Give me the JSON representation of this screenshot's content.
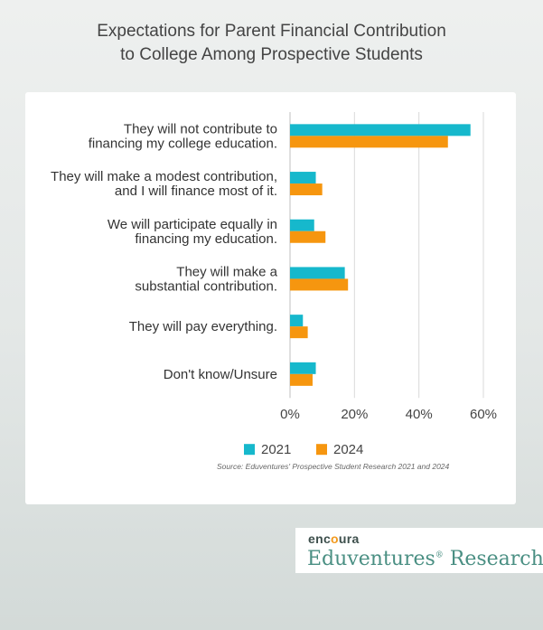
{
  "title_line1": "Expectations for Parent Financial Contribution",
  "title_line2": "to College Among Prospective Students",
  "chart_data": {
    "type": "bar",
    "orientation": "horizontal",
    "categories": [
      [
        "They will not contribute to",
        "financing my college education."
      ],
      [
        "They will make a modest contribution,",
        "and I will finance most of it."
      ],
      [
        "We will participate equally in",
        "financing my education."
      ],
      [
        "They will make a",
        "substantial contribution."
      ],
      [
        "They will pay everything."
      ],
      [
        "Don't know/Unsure"
      ]
    ],
    "series": [
      {
        "name": "2021",
        "color": "#16b8cc",
        "values": [
          56,
          8,
          7.5,
          17,
          4,
          8
        ]
      },
      {
        "name": "2024",
        "color": "#f6960f",
        "values": [
          49,
          10,
          11,
          18,
          5.5,
          7
        ]
      }
    ],
    "xlim": [
      0,
      60
    ],
    "ticks": [
      "0%",
      "20%",
      "40%",
      "60%"
    ],
    "grid": true,
    "legend_position": "bottom"
  },
  "source": "Source: Eduventures' Prospective Student Research 2021 and 2024",
  "logo": {
    "top_prefix": "enc",
    "top_accent": "o",
    "top_suffix": "ura",
    "bottom": "Eduventures",
    "bottom_mark": "®",
    "bottom_suffix": " Research"
  }
}
